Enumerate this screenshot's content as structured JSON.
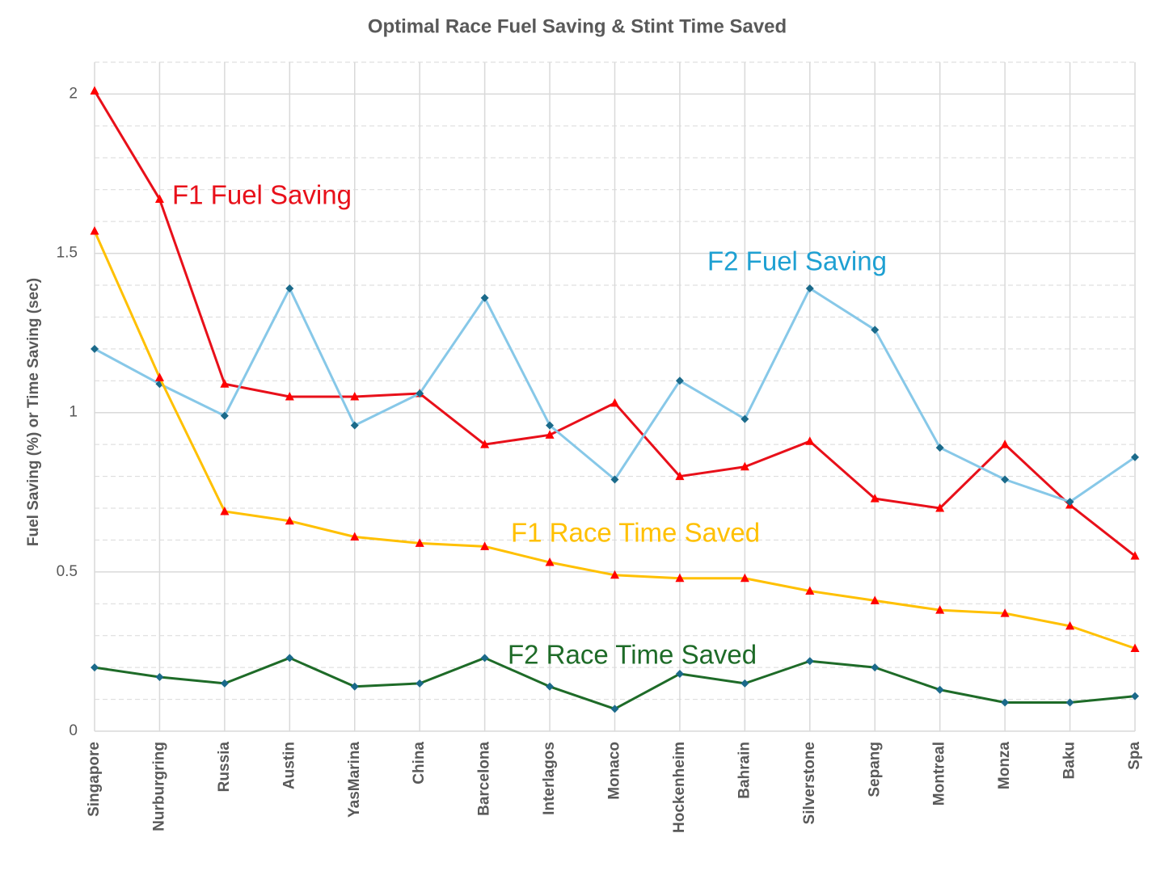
{
  "chart_data": {
    "type": "line",
    "title": "Optimal Race Fuel Saving & Stint Time Saved",
    "y_label": "Fuel Saving (%)  or Time Saving (sec)",
    "categories": [
      "Singapore",
      "Nurburgring",
      "Russia",
      "Austin",
      "YasMarina",
      "China",
      "Barcelona",
      "Interlagos",
      "Monaco",
      "Hockenheim",
      "Bahrain",
      "Silverstone",
      "Sepang",
      "Montreal",
      "Monza",
      "Baku",
      "Spa"
    ],
    "ylim": [
      0,
      2.1
    ],
    "yticks": [
      0,
      0.5,
      1,
      1.5,
      2
    ],
    "yminorticks": [
      0.1,
      0.2,
      0.3,
      0.4,
      0.6,
      0.7,
      0.8,
      0.9,
      1.1,
      1.2,
      1.3,
      1.4,
      1.6,
      1.7,
      1.8,
      1.9,
      2.1
    ],
    "grid": true,
    "series": [
      {
        "name": "F1 Fuel Saving",
        "color": "#e8101a",
        "marker": "triangle",
        "marker_color": "#ff0000",
        "values": [
          2.01,
          1.67,
          1.09,
          1.05,
          1.05,
          1.06,
          0.9,
          0.93,
          1.03,
          0.8,
          0.83,
          0.91,
          0.73,
          0.7,
          0.9,
          0.71,
          0.55
        ]
      },
      {
        "name": "F2 Fuel Saving",
        "color": "#87c8e8",
        "marker": "diamond",
        "marker_color": "#1b6a8a",
        "values": [
          1.2,
          1.09,
          0.99,
          1.39,
          0.96,
          1.06,
          1.36,
          0.96,
          0.79,
          1.1,
          0.98,
          1.39,
          1.26,
          0.89,
          0.79,
          0.72,
          0.86
        ]
      },
      {
        "name": "F1 Race Time Saved",
        "color": "#ffc000",
        "marker": "triangle",
        "marker_color": "#ff0000",
        "values": [
          1.57,
          1.11,
          0.69,
          0.66,
          0.61,
          0.59,
          0.58,
          0.53,
          0.49,
          0.48,
          0.48,
          0.44,
          0.41,
          0.38,
          0.37,
          0.33,
          0.26
        ]
      },
      {
        "name": "F2 Race Time Saved",
        "color": "#1e6b28",
        "marker": "diamond",
        "marker_color": "#1b6a8a",
        "values": [
          0.2,
          0.17,
          0.15,
          0.23,
          0.14,
          0.15,
          0.23,
          0.14,
          0.07,
          0.18,
          0.15,
          0.22,
          0.2,
          0.13,
          0.09,
          0.09,
          0.11
        ]
      }
    ]
  }
}
